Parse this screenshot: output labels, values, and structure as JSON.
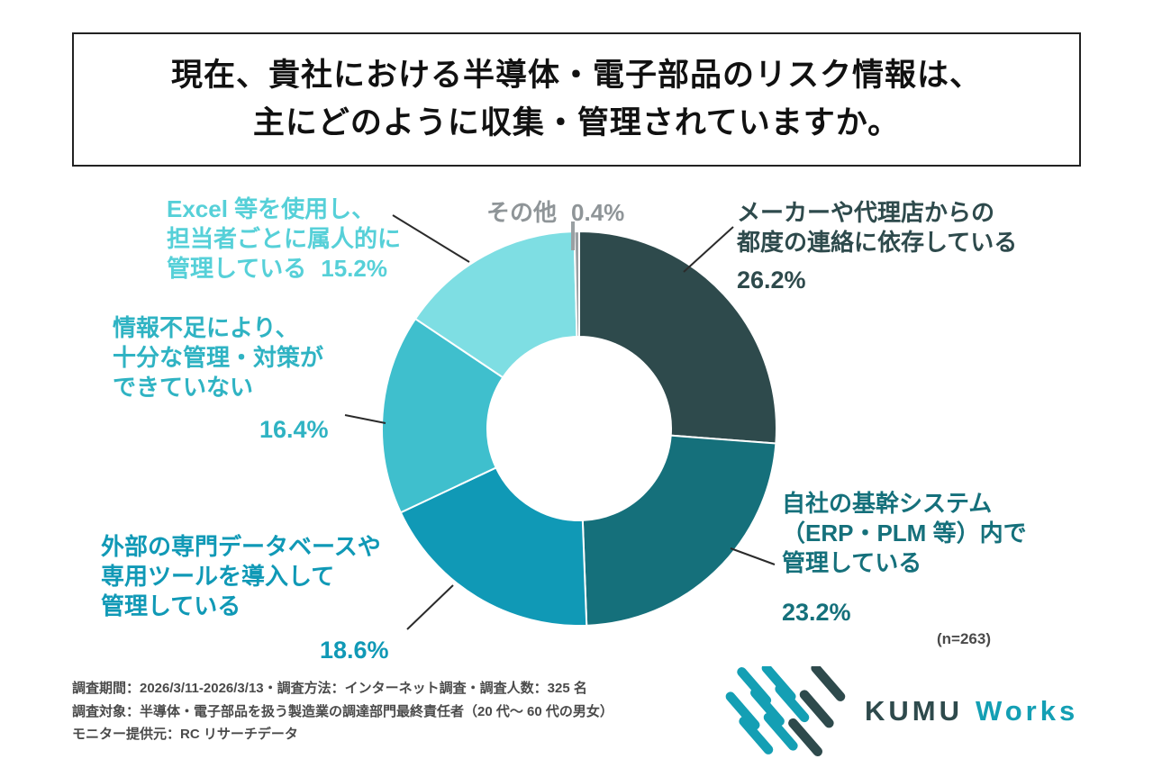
{
  "title": "現在、貴社における半導体・電子部品のリスク情報は、\n主にどのように収集・管理されていますか。",
  "chart_data": {
    "type": "pie",
    "style": "donut",
    "title": "現在、貴社における半導体・電子部品のリスク情報は、主にどのように収集・管理されていますか。",
    "sample_note": "(n=263)",
    "start_angle_deg": -90,
    "direction": "clockwise",
    "legend_position": "callout-labels",
    "segments": [
      {
        "label": "メーカーや代理店からの都度の連絡に依存している",
        "callout": "メーカーや代理店からの\n都度の連絡に依存している",
        "value": 26.2,
        "pct": "26.2%",
        "color": "#2e4a4c",
        "label_color": "#2e4a4c"
      },
      {
        "label": "自社の基幹システム（ERP・PLM 等）内で管理している",
        "callout": "自社の基幹システム\n（ERP・PLM 等）内で\n管理している",
        "value": 23.2,
        "pct": "23.2%",
        "color": "#15707b",
        "label_color": "#15707b"
      },
      {
        "label": "外部の専門データベースや専用ツールを導入して管理している",
        "callout": "外部の専門データベースや\n専用ツールを導入して\n管理している",
        "value": 18.6,
        "pct": "18.6%",
        "color": "#1099b6",
        "label_color": "#1099b6"
      },
      {
        "label": "情報不足により、十分な管理・対策ができていない",
        "callout": "情報不足により、\n十分な管理・対策が\nできていない",
        "value": 16.4,
        "pct": "16.4%",
        "color": "#3fbfcd",
        "label_color": "#2fb3c3"
      },
      {
        "label": "Excel 等を使用し、担当者ごとに属人的に管理している",
        "callout": "Excel 等を使用し、\n担当者ごとに属人的に\n管理している",
        "value": 15.2,
        "pct": "15.2%",
        "color": "#7edee3",
        "label_color": "#56d0d8"
      },
      {
        "label": "その他",
        "callout": "その他",
        "value": 0.4,
        "pct": "0.4%",
        "color": "#9aa0a3",
        "label_color": "#8f9598"
      }
    ]
  },
  "sample_note": "(n=263)",
  "footer_note": "調査期間：2026/3/11-2026/3/13・調査方法：インターネット調査・調査人数：325 名\n調査対象：半導体・電子部品を扱う製造業の調達部門最終責任者（20 代〜 60 代の男女）\nモニター提供元：RC リサーチデータ",
  "logo": {
    "part1": "KUMU",
    "part2": "Works",
    "teal": "#149fb4",
    "dark": "#2e4a4c"
  }
}
